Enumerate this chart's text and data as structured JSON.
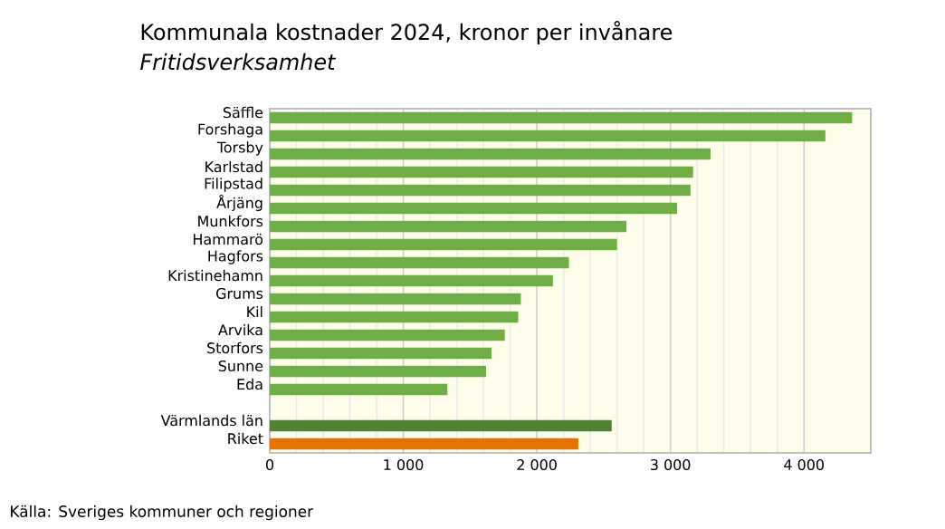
{
  "chart_data": {
    "type": "bar",
    "orientation": "horizontal",
    "title": "Kommunala kostnader 2024, kronor per invånare",
    "subtitle": "Fritidsverksamhet",
    "categories": [
      "Säffle",
      "Forshaga",
      "Torsby",
      "Karlstad",
      "Filipstad",
      "Årjäng",
      "Munkfors",
      "Hammarö",
      "Hagfors",
      "Kristinehamn",
      "Grums",
      "Kil",
      "Arvika",
      "Storfors",
      "Sunne",
      "Eda",
      null,
      "Värmlands län",
      "Riket"
    ],
    "values": [
      4360,
      4160,
      3300,
      3170,
      3150,
      3050,
      2670,
      2600,
      2240,
      2120,
      1880,
      1860,
      1760,
      1660,
      1620,
      1330,
      null,
      2560,
      2310
    ],
    "colors": [
      "#70ad47",
      "#70ad47",
      "#70ad47",
      "#70ad47",
      "#70ad47",
      "#70ad47",
      "#70ad47",
      "#70ad47",
      "#70ad47",
      "#70ad47",
      "#70ad47",
      "#70ad47",
      "#70ad47",
      "#70ad47",
      "#70ad47",
      "#70ad47",
      "#70ad47",
      "#548235",
      "#e57300"
    ],
    "xlim": [
      0,
      4500
    ],
    "xticks": [
      0,
      {
        "value": 1000,
        "label": "1 000"
      },
      {
        "value": 2000,
        "label": "2 000"
      },
      {
        "value": 3000,
        "label": "3 000"
      },
      {
        "value": 4000,
        "label": "4 000"
      }
    ],
    "grid": "x",
    "annotations": [
      "Källa: Sveriges kommuner och regioner"
    ]
  }
}
